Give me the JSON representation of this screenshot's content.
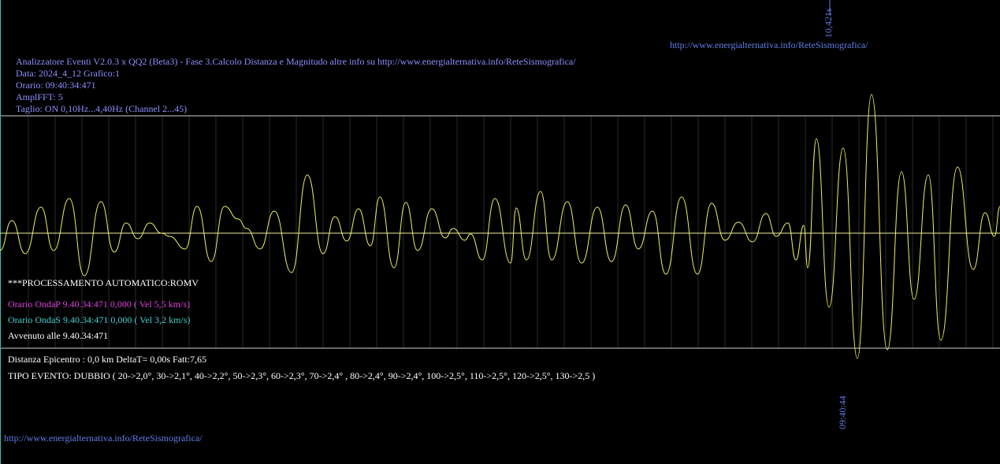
{
  "marker_top": "10,421s",
  "link_top": "http://www.energialternativa.info/ReteSismografica/",
  "header": {
    "lines": [
      "Analizzatore Eventi V2.0.3 x QQ2 (Beta3) - Fase 3.Calcolo Distanza e Magnitudo altre info su http://www.energialternativa.info/ReteSismografica/",
      "Data: 2024_4_12 Grafico:1",
      "Orario: 09:40:34:471",
      "AmplFFT: 5",
      "Taglio: ON 0,10Hz...4,40Hz      (Channel 2...45)"
    ]
  },
  "processing": "***PROCESSAMENTO AUTOMATICO:ROMV",
  "wave_p": "Orario OndaP 9.40.34:471  0,000 ( Vel 5,5 km/s)",
  "wave_s": "Orario OndaS 9.40.34:471  0,000 ( Vel 3,2 km/s)",
  "occurred": "Avvenuto alle 9.40.34:471",
  "distance": "Distanza Epicentro : 0,0 km DeltaT= 0,00s  Fatt:7,65",
  "event_type": "TIPO EVENTO: DUBBIO ( 20->2,0°, 30->2,1°, 40->2,2°, 50->2,3°, 60->2,3°, 70->2,4° , 80->2,4°, 90->2,4°, 100->2,5°, 110->2,5°, 120->2,5°, 130->2,5 )",
  "marker_bottom": "09:40:44",
  "link_bottom": "http://www.energialternativa.info/ReteSismografica/"
}
